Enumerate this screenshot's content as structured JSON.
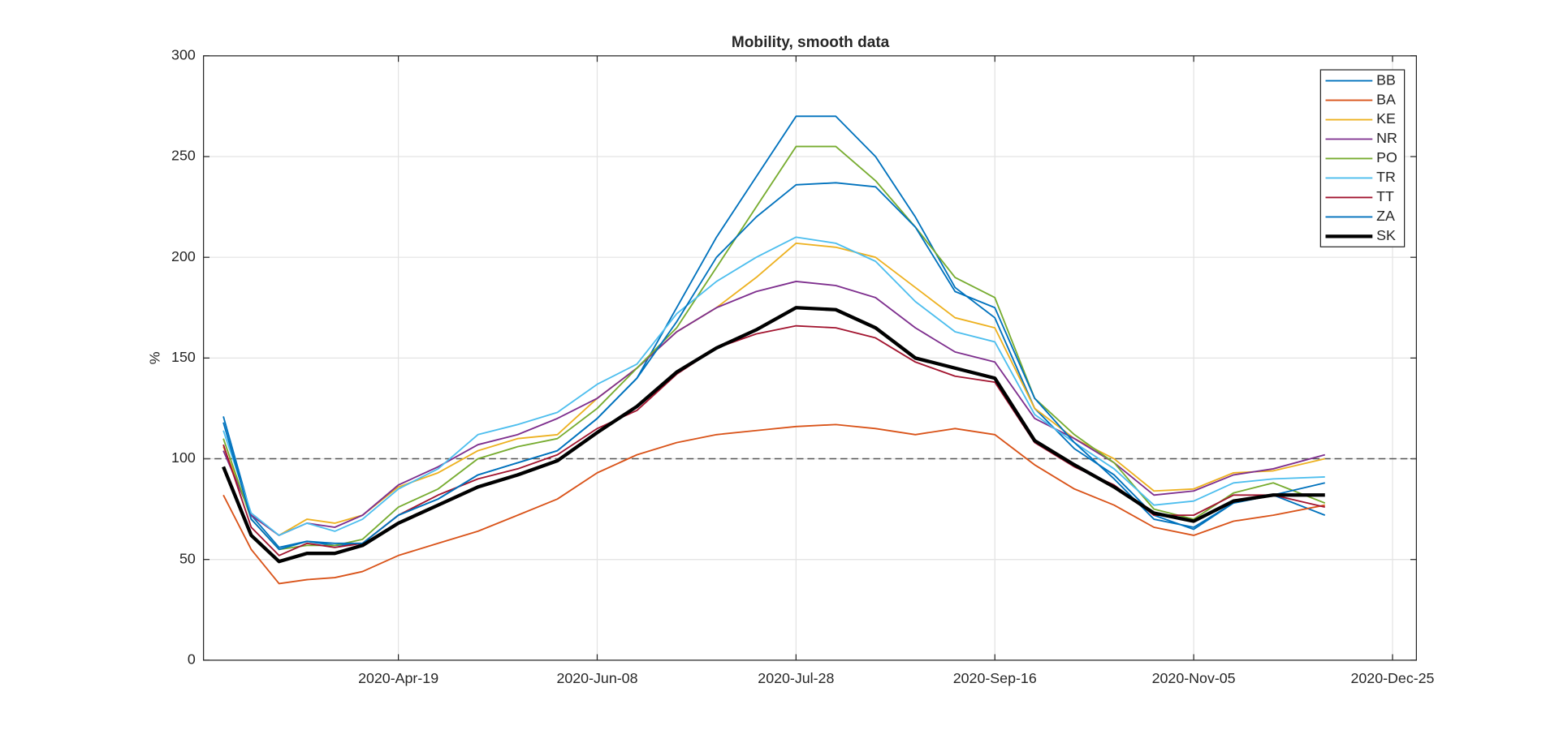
{
  "chart_data": {
    "type": "line",
    "title": "Mobility, smooth data",
    "ylabel": "%",
    "x": [
      "2020-03-06",
      "2020-03-13",
      "2020-03-20",
      "2020-03-27",
      "2020-04-03",
      "2020-04-10",
      "2020-04-19",
      "2020-04-29",
      "2020-05-09",
      "2020-05-19",
      "2020-05-29",
      "2020-06-08",
      "2020-06-18",
      "2020-06-28",
      "2020-07-08",
      "2020-07-18",
      "2020-07-28",
      "2020-08-07",
      "2020-08-17",
      "2020-08-27",
      "2020-09-06",
      "2020-09-16",
      "2020-09-26",
      "2020-10-06",
      "2020-10-16",
      "2020-10-26",
      "2020-11-05",
      "2020-11-15",
      "2020-11-25",
      "2020-12-08"
    ],
    "series": [
      {
        "name": "BB",
        "color": "#0072bd",
        "width": 1.5,
        "values": [
          121,
          72,
          56,
          59,
          57,
          58,
          72,
          80,
          92,
          98,
          104,
          120,
          140,
          175,
          210,
          240,
          270,
          270,
          250,
          220,
          185,
          170,
          125,
          105,
          92,
          72,
          65,
          78,
          82,
          72
        ]
      },
      {
        "name": "BA",
        "color": "#d95319",
        "width": 1.5,
        "values": [
          82,
          55,
          38,
          40,
          41,
          44,
          52,
          58,
          64,
          72,
          80,
          93,
          102,
          108,
          112,
          114,
          116,
          117,
          115,
          112,
          115,
          112,
          97,
          85,
          77,
          66,
          62,
          69,
          72,
          77
        ]
      },
      {
        "name": "KE",
        "color": "#edb120",
        "width": 1.5,
        "values": [
          106,
          72,
          62,
          70,
          68,
          72,
          86,
          93,
          104,
          110,
          112,
          130,
          145,
          163,
          175,
          190,
          207,
          205,
          200,
          185,
          170,
          165,
          125,
          110,
          100,
          84,
          85,
          93,
          94,
          100
        ]
      },
      {
        "name": "NR",
        "color": "#7e2f8e",
        "width": 1.5,
        "values": [
          104,
          72,
          62,
          68,
          66,
          72,
          87,
          96,
          107,
          112,
          120,
          130,
          145,
          163,
          175,
          183,
          188,
          186,
          180,
          165,
          153,
          148,
          120,
          110,
          98,
          82,
          84,
          92,
          95,
          102
        ]
      },
      {
        "name": "PO",
        "color": "#77ac30",
        "width": 1.5,
        "values": [
          110,
          70,
          55,
          57,
          57,
          60,
          76,
          85,
          100,
          106,
          110,
          125,
          145,
          165,
          195,
          225,
          255,
          255,
          238,
          215,
          190,
          180,
          130,
          112,
          98,
          75,
          70,
          83,
          88,
          78
        ]
      },
      {
        "name": "TR",
        "color": "#4dbeee",
        "width": 1.5,
        "values": [
          114,
          73,
          62,
          68,
          64,
          70,
          85,
          95,
          112,
          117,
          123,
          137,
          147,
          172,
          188,
          200,
          210,
          207,
          198,
          178,
          163,
          158,
          122,
          108,
          95,
          77,
          79,
          88,
          90,
          91
        ]
      },
      {
        "name": "TT",
        "color": "#a2142f",
        "width": 1.5,
        "values": [
          107,
          66,
          52,
          58,
          56,
          58,
          72,
          82,
          90,
          95,
          102,
          115,
          124,
          142,
          155,
          162,
          166,
          165,
          160,
          148,
          141,
          138,
          108,
          96,
          87,
          72,
          72,
          82,
          82,
          76
        ]
      },
      {
        "name": "ZA",
        "color": "#0072bd",
        "width": 1.5,
        "values": [
          118,
          70,
          55,
          59,
          58,
          58,
          72,
          80,
          92,
          98,
          104,
          120,
          140,
          168,
          200,
          220,
          236,
          237,
          235,
          215,
          183,
          175,
          130,
          108,
          90,
          70,
          66,
          78,
          82,
          88
        ]
      },
      {
        "name": "SK",
        "color": "#000000",
        "width": 3.5,
        "values": [
          96,
          62,
          49,
          53,
          53,
          57,
          68,
          77,
          86,
          92,
          99,
          113,
          126,
          143,
          155,
          164,
          175,
          174,
          165,
          150,
          145,
          140,
          109,
          97,
          86,
          73,
          69,
          79,
          82,
          82
        ]
      }
    ],
    "xlim": [
      "2020-03-01",
      "2020-12-31"
    ],
    "xticks": [
      {
        "value": "2020-04-19",
        "label": "2020-Apr-19"
      },
      {
        "value": "2020-06-08",
        "label": "2020-Jun-08"
      },
      {
        "value": "2020-07-28",
        "label": "2020-Jul-28"
      },
      {
        "value": "2020-09-16",
        "label": "2020-Sep-16"
      },
      {
        "value": "2020-11-05",
        "label": "2020-Nov-05"
      },
      {
        "value": "2020-12-25",
        "label": "2020-Dec-25"
      }
    ],
    "ylim": [
      0,
      300
    ],
    "yticks": [
      0,
      50,
      100,
      150,
      200,
      250,
      300
    ],
    "reference_line": 100,
    "grid": true,
    "legend": "northeast"
  }
}
